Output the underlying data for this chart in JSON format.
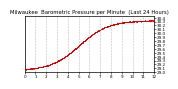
{
  "title": "Milwaukee  Barometric Pressure per Minute  (Last 24 Hours)",
  "y_min": 29.0,
  "y_max": 30.45,
  "y_ticks": [
    29.0,
    29.1,
    29.2,
    29.3,
    29.4,
    29.5,
    29.6,
    29.7,
    29.8,
    29.9,
    30.0,
    30.1,
    30.2,
    30.3,
    30.4
  ],
  "y_tick_labels": [
    "29.0",
    "29.1",
    "29.2",
    "29.3",
    "29.4",
    "29.5",
    "29.6",
    "29.7",
    "29.8",
    "29.9",
    "30.0",
    "30.1",
    "30.2",
    "30.3",
    "30.4"
  ],
  "num_points": 1440,
  "x_tick_count": 13,
  "dot_color": "#dd0000",
  "dot_size": 0.3,
  "grid_color": "#bbbbbb",
  "background_color": "#ffffff",
  "title_fontsize": 3.8,
  "tick_fontsize": 3.0,
  "seed": 42
}
